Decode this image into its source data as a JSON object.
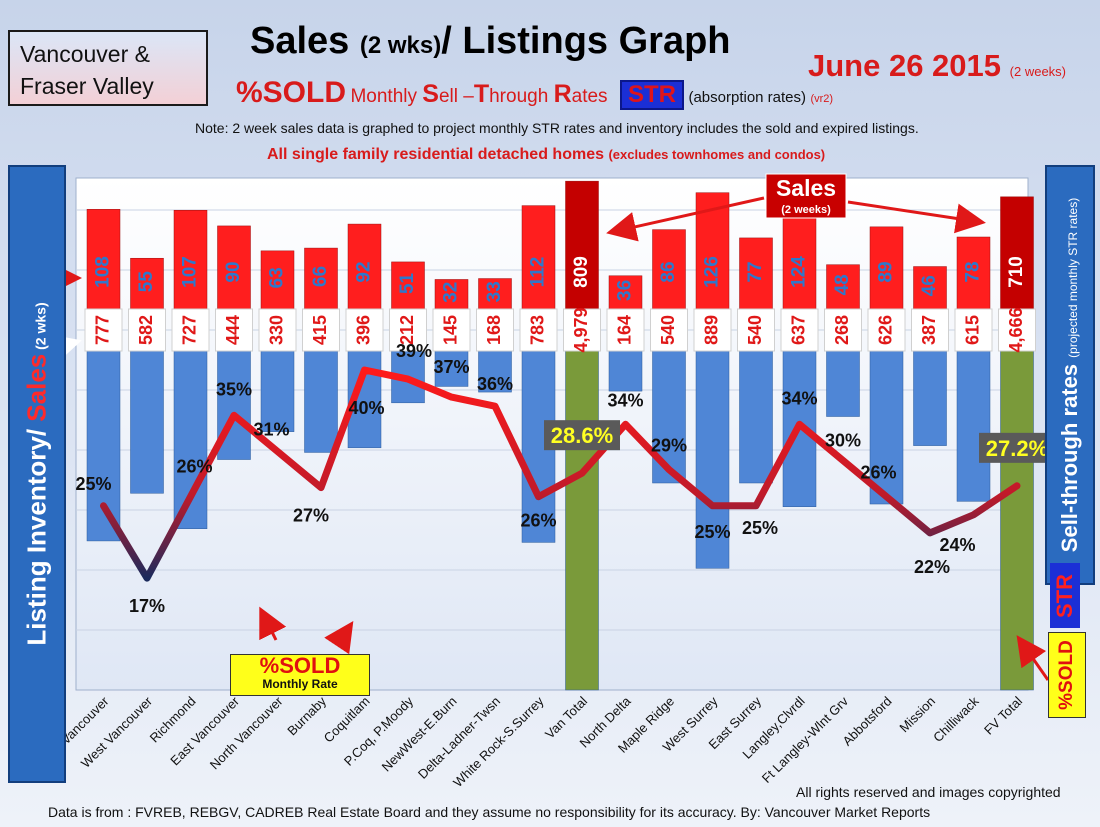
{
  "header": {
    "region_line1": "Vancouver &",
    "region_line2": "Fraser Valley",
    "title_main": "Sales ",
    "title_small": "(2 wks)",
    "title_rest": "/ Listings Graph",
    "date": "June 26 2015",
    "date_note": "(2 weeks)",
    "subtitle_sold": "%SOLD",
    "subtitle_m": "Monthly ",
    "subtitle_S": "S",
    "subtitle_ell": "ell –",
    "subtitle_T": "T",
    "subtitle_hrough": "hrough ",
    "subtitle_R": "R",
    "subtitle_ates": "ates",
    "str_badge": "STR",
    "absorption": "(absorption rates)",
    "version": "(vr2)",
    "note": "Note: 2 week sales data is graphed to project monthly STR rates and inventory includes the sold and expired listings.",
    "note2": "All single family residential detached homes ",
    "note2_small": "(excludes townhomes and condos)"
  },
  "left_axis": {
    "listing": "Listing Inventory/ ",
    "sales": "Sales",
    "suffix": " (2 wks)"
  },
  "right_axis": {
    "label": "Sell-through rates ",
    "suffix": "(projected monthly STR rates)",
    "str": "STR",
    "sold": "%SOLD"
  },
  "callouts": {
    "sales_title": "Sales",
    "sales_sub": "(2 weeks)",
    "sold_title": "%SOLD",
    "sold_sub": "Monthly Rate"
  },
  "footer": {
    "rights": "All rights reserved and  images copyrighted",
    "source": "Data is from : FVREB, REBGV, CADREB Real Estate Board and they assume no responsibility for its accuracy. By: Vancouver Market Reports"
  },
  "colors": {
    "sales": "#ff1e1e",
    "sales_total": "#c40000",
    "inventory": "#4f86d6",
    "inventory_total": "#7a9a3a",
    "str_line": "#e01818"
  },
  "chart_data": {
    "type": "bar",
    "categories": [
      "Vancouver",
      "West Vancouver",
      "Richmond",
      "East Vancouver",
      "North Vancouver",
      "Burnaby",
      "Coquitlam",
      "P.Coq, P.Moody",
      "NewWest-E.Burn",
      "Delta-Ladner-Twsn",
      "White Rock-S.Surrey",
      "Van Total",
      "North Delta",
      "Maple Ridge",
      "West Surrey",
      "East Surrey",
      "Langley,Clvrdl",
      "Ft Langley-Wlnt Grv",
      "Abbotsford",
      "Mission",
      "Chilliwack",
      "FV Total"
    ],
    "series": [
      {
        "name": "Sales",
        "values": [
          108,
          55,
          107,
          90,
          63,
          66,
          92,
          51,
          32,
          33,
          112,
          809,
          36,
          86,
          126,
          77,
          124,
          48,
          89,
          46,
          78,
          710
        ]
      },
      {
        "name": "Listing Inventory",
        "values": [
          777,
          582,
          727,
          444,
          330,
          415,
          396,
          212,
          145,
          168,
          783,
          4979,
          164,
          540,
          889,
          540,
          637,
          268,
          626,
          387,
          615,
          4666
        ]
      },
      {
        "name": "STR",
        "values": [
          25,
          17,
          26,
          35,
          31,
          27,
          40,
          39,
          37,
          36,
          26,
          28.6,
          34,
          29,
          25,
          25,
          34,
          30,
          26,
          22,
          24,
          27.2
        ]
      }
    ],
    "inventory_labels": [
      "777",
      "582",
      "727",
      "444",
      "330",
      "415",
      "396",
      "212",
      "145",
      "168",
      "783",
      "4,979",
      "164",
      "540",
      "889",
      "540",
      "637",
      "268",
      "626",
      "387",
      "615",
      "4,666"
    ],
    "str_labels": [
      "25%",
      "17%",
      "26%",
      "35%",
      "31%",
      "27%",
      "40%",
      "39%",
      "37%",
      "36%",
      "26%",
      "28.6%",
      "34%",
      "29%",
      "25%",
      "25%",
      "34%",
      "30%",
      "26%",
      "22%",
      "24%",
      "27.2%"
    ],
    "total_indices": [
      11,
      21
    ]
  }
}
